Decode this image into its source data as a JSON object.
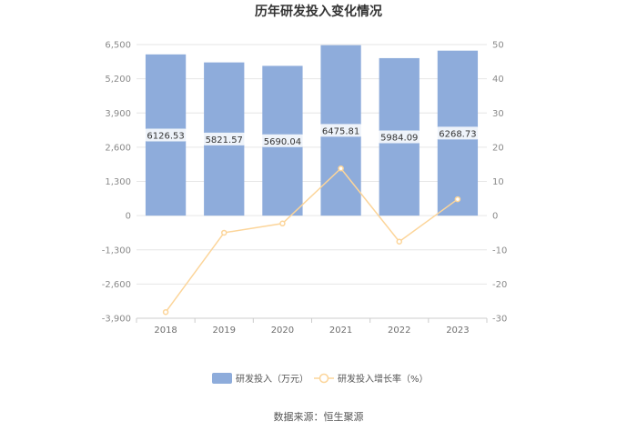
{
  "chart_data": {
    "type": "bar",
    "title": "历年研发投入变化情况",
    "categories": [
      "2018",
      "2019",
      "2020",
      "2021",
      "2022",
      "2023"
    ],
    "series": [
      {
        "name": "研发投入（万元）",
        "type": "bar",
        "axis": "left",
        "values": [
          6126.53,
          5821.57,
          5690.04,
          6475.81,
          5984.09,
          6268.73
        ],
        "value_labels": [
          "6126.53",
          "5821.57",
          "5690.04",
          "6475.81",
          "5984.09",
          "6268.73"
        ],
        "color": "#8eacdb"
      },
      {
        "name": "研发投入增长率（%）",
        "type": "line",
        "axis": "right",
        "values": [
          -28.2,
          -5.0,
          -2.3,
          13.8,
          -7.6,
          4.8
        ],
        "color": "#fcd59a"
      }
    ],
    "y_left": {
      "ylim": [
        -3900,
        6500
      ],
      "ticks": [
        6500,
        5200,
        3900,
        2600,
        1300,
        0,
        -1300,
        -2600,
        -3900
      ],
      "tick_labels": [
        "6,500",
        "5,200",
        "3,900",
        "2,600",
        "1,300",
        "0",
        "-1,300",
        "-2,600",
        "-3,900"
      ]
    },
    "y_right": {
      "ylim": [
        -30,
        50
      ],
      "ticks": [
        50,
        40,
        30,
        20,
        10,
        0,
        -10,
        -20,
        -30
      ],
      "tick_labels": [
        "50",
        "40",
        "30",
        "20",
        "10",
        "0",
        "-10",
        "-20",
        "-30"
      ]
    },
    "grid": true,
    "legend_position": "bottom-center",
    "source": "数据来源：恒生聚源"
  }
}
